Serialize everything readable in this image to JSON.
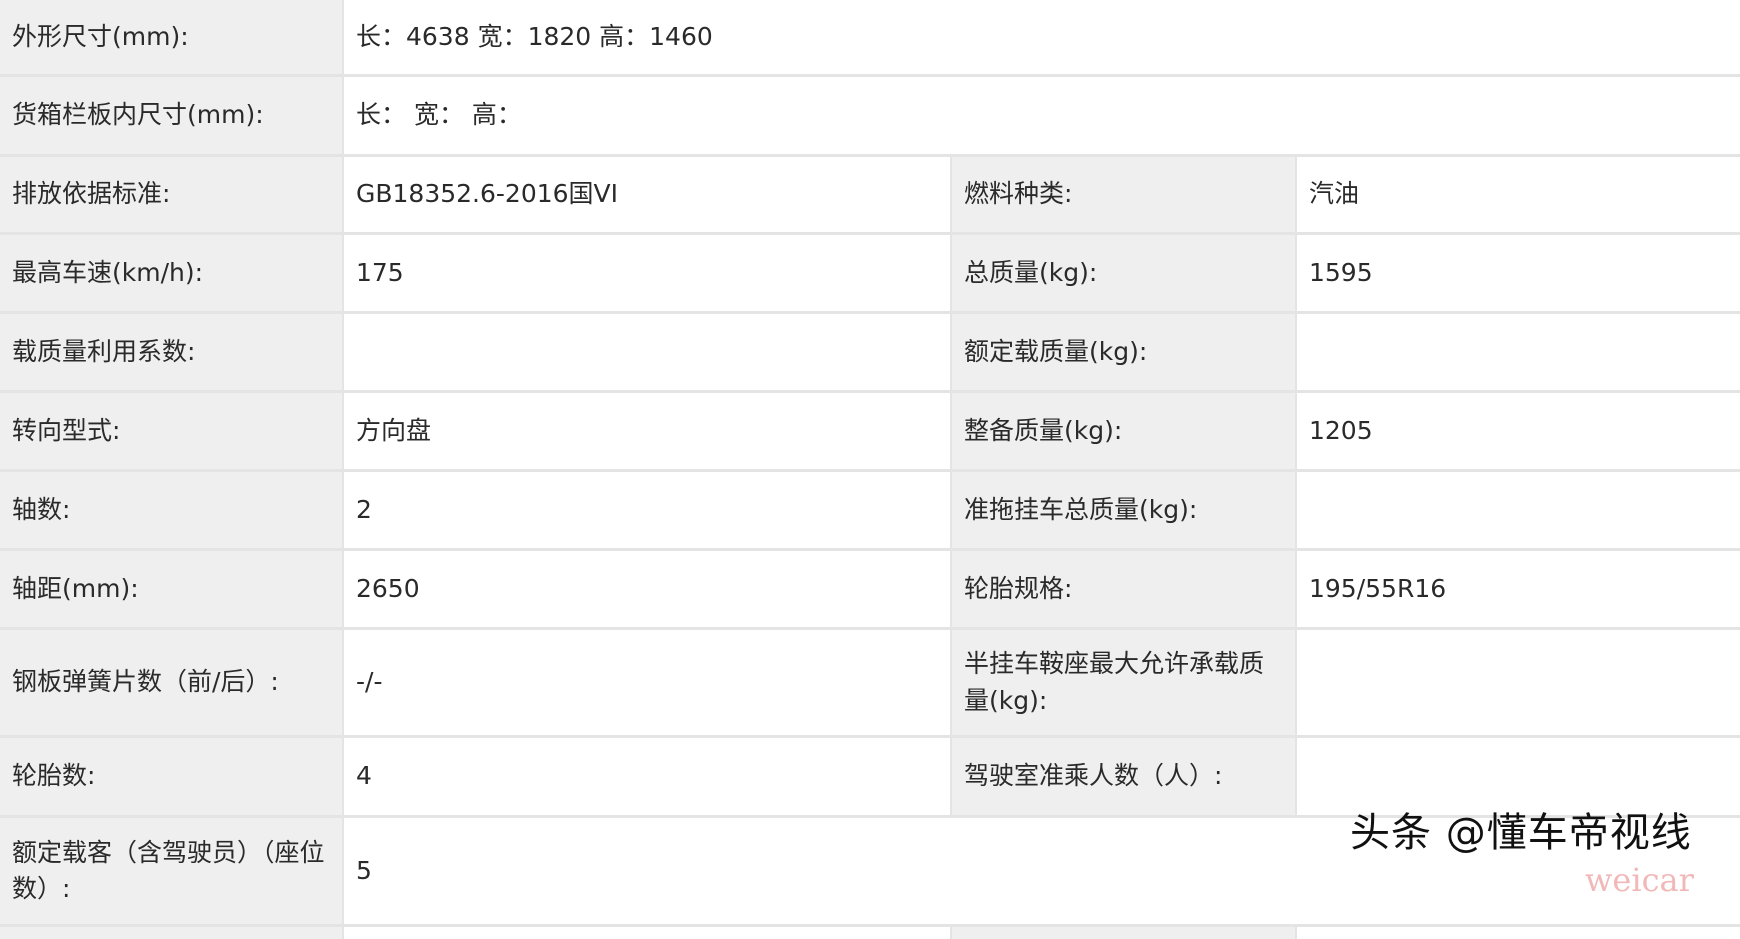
{
  "rows": [
    {
      "l1": "外形尺寸(mm):",
      "v1": "长：4638 宽：1820 高：1460"
    },
    {
      "l1": "货箱栏板内尺寸(mm):",
      "v1": "长：  宽：  高："
    },
    {
      "l1": "排放依据标准:",
      "v1": "GB18352.6-2016国VI",
      "l2": "燃料种类:",
      "v2": "汽油"
    },
    {
      "l1": "最高车速(km/h):",
      "v1": "175",
      "l2": "总质量(kg):",
      "v2": "1595"
    },
    {
      "l1": "载质量利用系数:",
      "v1": "",
      "l2": "额定载质量(kg):",
      "v2": ""
    },
    {
      "l1": "转向型式:",
      "v1": "方向盘",
      "l2": "整备质量(kg):",
      "v2": "1205"
    },
    {
      "l1": "轴数:",
      "v1": "2",
      "l2": "准拖挂车总质量(kg):",
      "v2": ""
    },
    {
      "l1": "轴距(mm):",
      "v1": "2650",
      "l2": "轮胎规格:",
      "v2": "195/55R16"
    },
    {
      "l1": "钢板弹簧片数（前/后）:",
      "v1": "-/-",
      "l2": "半挂车鞍座最大允许承载质量(kg):",
      "v2": ""
    },
    {
      "l1": "轮胎数:",
      "v1": "4",
      "l2": "驾驶室准乘人数（人）:",
      "v2": ""
    },
    {
      "l1": "额定载客（含驾驶员）（座位数）:",
      "v1": "5"
    }
  ],
  "watermark": "头条 @懂车帝视线",
  "watermark2": "weicar"
}
